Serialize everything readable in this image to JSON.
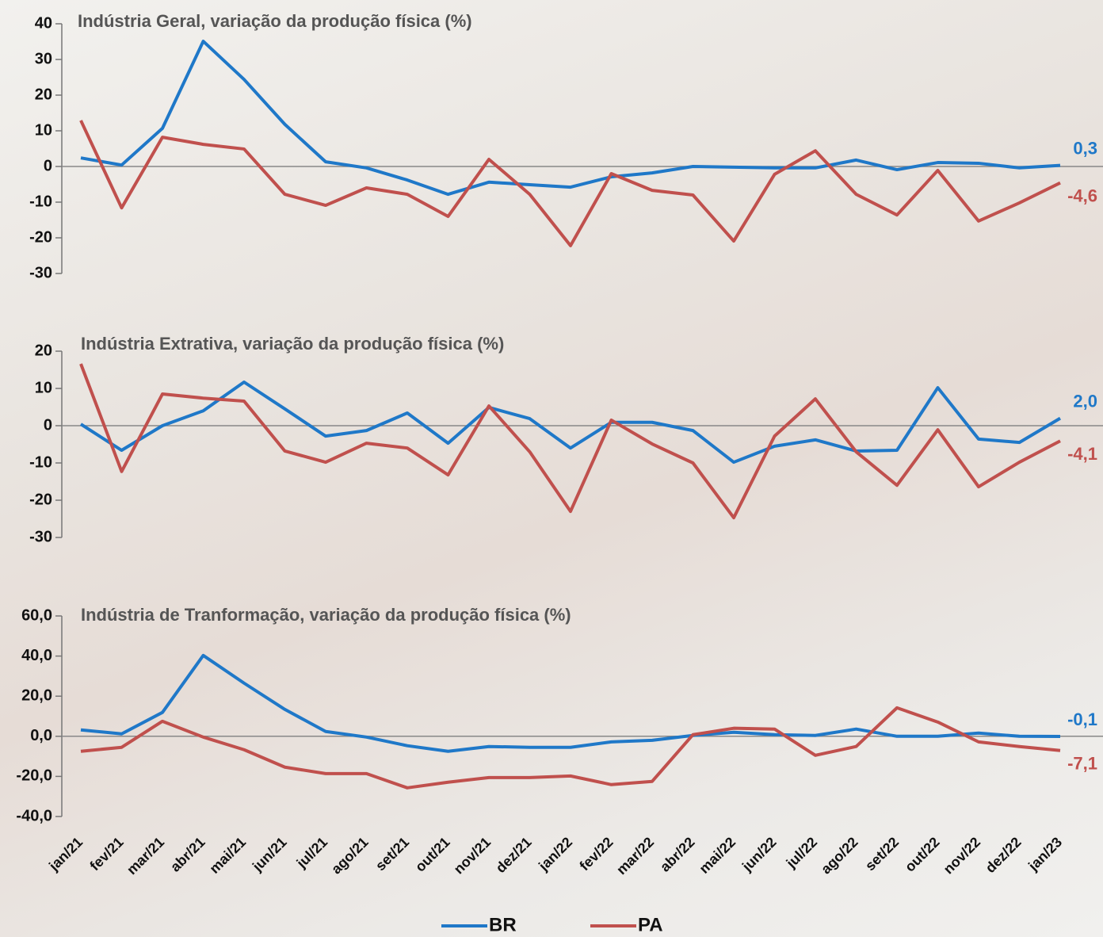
{
  "chart_data": [
    {
      "type": "line",
      "title": "Indústria Geral, variação da produção física (%)",
      "ylim": [
        -30,
        40
      ],
      "yticks": [
        -30,
        -20,
        -10,
        0,
        10,
        20,
        30,
        40
      ],
      "series": [
        {
          "color": "#1f78c8",
          "values": [
            2.4,
            0.4,
            10.7,
            35.1,
            24.4,
            11.8,
            1.3,
            -0.4,
            -3.8,
            -7.8,
            -4.4,
            -5.1,
            -5.8,
            -2.9,
            -1.8,
            0,
            -0.2,
            -0.4,
            -0.4,
            1.8,
            -0.9,
            1.1,
            0.9,
            -0.4,
            0.3
          ],
          "value_labels": [
            null,
            null,
            null,
            null,
            null,
            null,
            null,
            null,
            null,
            null,
            null,
            null,
            null,
            null,
            null,
            null,
            null,
            null,
            null,
            null,
            null,
            null,
            null,
            null,
            "0,3"
          ]
        },
        {
          "color": "#c0504d",
          "values": [
            12.9,
            -11.6,
            8.2,
            6.2,
            4.9,
            -7.8,
            -10.9,
            -6.0,
            -7.8,
            -14.0,
            2.0,
            -7.8,
            -22.2,
            -2.0,
            -6.7,
            -8.0,
            -20.9,
            -2.2,
            4.4,
            -7.8,
            -13.6,
            -1.1,
            -15.3,
            -10.2,
            -4.6
          ],
          "value_labels": [
            null,
            null,
            null,
            null,
            null,
            null,
            null,
            null,
            null,
            null,
            null,
            null,
            null,
            null,
            null,
            null,
            null,
            null,
            null,
            null,
            null,
            null,
            null,
            null,
            "-4,6"
          ]
        }
      ]
    },
    {
      "type": "line",
      "title": "Indústria Extrativa, variação da produção física (%)",
      "ylim": [
        -30,
        20
      ],
      "yticks": [
        -30,
        -20,
        -10,
        0,
        10,
        20
      ],
      "series": [
        {
          "color": "#1f78c8",
          "values": [
            0.4,
            -6.6,
            0,
            4.0,
            11.7,
            4.5,
            -2.8,
            -1.3,
            3.4,
            -4.7,
            4.9,
            1.9,
            -6.0,
            0.9,
            0.9,
            -1.3,
            -9.8,
            -5.5,
            -3.8,
            -6.8,
            -6.6,
            10.2,
            -3.6,
            -4.5,
            2.0
          ],
          "value_labels": [
            null,
            null,
            null,
            null,
            null,
            null,
            null,
            null,
            null,
            null,
            null,
            null,
            null,
            null,
            null,
            null,
            null,
            null,
            null,
            null,
            null,
            null,
            null,
            null,
            "2,0"
          ]
        },
        {
          "color": "#c0504d",
          "values": [
            16.6,
            -12.3,
            8.5,
            7.4,
            6.6,
            -6.8,
            -9.8,
            -4.7,
            -6.0,
            -13.2,
            5.3,
            -7.0,
            -23.0,
            1.5,
            -4.9,
            -10.0,
            -24.7,
            -2.8,
            7.2,
            -7.0,
            -16.0,
            -1.1,
            -16.4,
            -9.8,
            -4.1
          ],
          "value_labels": [
            null,
            null,
            null,
            null,
            null,
            null,
            null,
            null,
            null,
            null,
            null,
            null,
            null,
            null,
            null,
            null,
            null,
            null,
            null,
            null,
            null,
            null,
            null,
            null,
            "-4,1"
          ]
        }
      ]
    },
    {
      "type": "line",
      "title": "Indústria de Tranformação, variação da produção física (%)",
      "categories": [
        "jan/21",
        "fev/21",
        "mar/21",
        "abr/21",
        "mai/21",
        "jun/21",
        "jul/21",
        "ago/21",
        "set/21",
        "out/21",
        "nov/21",
        "dez/21",
        "jan/22",
        "fev/22",
        "mar/22",
        "abr/22",
        "mai/22",
        "jun/22",
        "jul/22",
        "ago/22",
        "set/22",
        "out/22",
        "nov/22",
        "dez/22",
        "jan/23"
      ],
      "ylim": [
        -40,
        60
      ],
      "yticks": [
        {
          "value": -40,
          "label": "-40,0"
        },
        {
          "value": -20,
          "label": "-20,0"
        },
        {
          "value": 0,
          "label": "0,0"
        },
        {
          "value": 20,
          "label": "20,0"
        },
        {
          "value": 40,
          "label": "40,0"
        },
        {
          "value": 60,
          "label": "60,0"
        }
      ],
      "legend": "bottom",
      "series": [
        {
          "name": "BR",
          "color": "#1f78c8",
          "values": [
            3.2,
            1.2,
            11.9,
            40.3,
            26.5,
            13.4,
            2.4,
            -0.4,
            -4.7,
            -7.5,
            -5.1,
            -5.5,
            -5.5,
            -2.8,
            -2.0,
            0.4,
            2.0,
            0.8,
            0.4,
            3.6,
            0,
            0,
            1.6,
            0,
            -0.1
          ],
          "value_labels": [
            null,
            null,
            null,
            null,
            null,
            null,
            null,
            null,
            null,
            null,
            null,
            null,
            null,
            null,
            null,
            null,
            null,
            null,
            null,
            null,
            null,
            null,
            null,
            null,
            "-0,1"
          ]
        },
        {
          "name": "PA",
          "color": "#c0504d",
          "values": [
            -7.5,
            -5.5,
            7.5,
            -0.4,
            -6.7,
            -15.4,
            -18.6,
            -18.6,
            -25.7,
            -22.9,
            -20.6,
            -20.6,
            -19.8,
            -24.1,
            -22.5,
            0.8,
            4.0,
            3.6,
            -9.5,
            -5.1,
            14.2,
            7.1,
            -2.8,
            -5.1,
            -7.1
          ],
          "value_labels": [
            null,
            null,
            null,
            null,
            null,
            null,
            null,
            null,
            null,
            null,
            null,
            null,
            null,
            null,
            null,
            null,
            null,
            null,
            null,
            null,
            null,
            null,
            null,
            null,
            "-7,1"
          ]
        }
      ]
    }
  ]
}
